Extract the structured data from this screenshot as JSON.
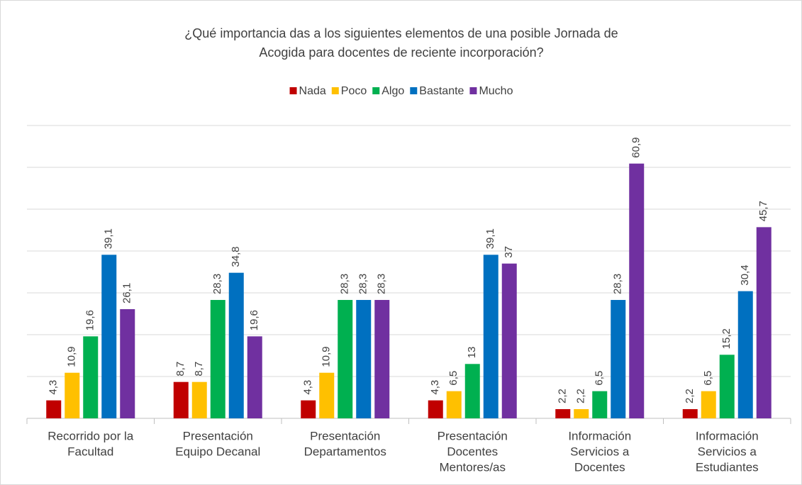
{
  "chart_data": {
    "type": "bar",
    "title": [
      "¿Qué importancia das a los siguientes elementos de una posible Jornada de",
      "Acogida para docentes de reciente incorporación?"
    ],
    "categories": [
      [
        "Recorrido por la",
        "Facultad"
      ],
      [
        "Presentación",
        "Equipo Decanal"
      ],
      [
        "Presentación",
        "Departamentos"
      ],
      [
        "Presentación",
        "Docentes",
        "Mentores/as"
      ],
      [
        "Información",
        "Servicios a",
        "Docentes"
      ],
      [
        "Información",
        "Servicios a",
        "Estudiantes"
      ]
    ],
    "series": [
      {
        "name": "Nada",
        "color": "#c00000",
        "values": [
          4.3,
          8.7,
          4.3,
          4.3,
          2.2,
          2.2
        ],
        "value_labels": [
          "4,3",
          "8,7",
          "4,3",
          "4,3",
          "2,2",
          "2,2"
        ]
      },
      {
        "name": "Poco",
        "color": "#ffc000",
        "values": [
          10.9,
          8.7,
          10.9,
          6.5,
          2.2,
          6.5
        ],
        "value_labels": [
          "10,9",
          "8,7",
          "10,9",
          "6,5",
          "2,2",
          "6,5"
        ]
      },
      {
        "name": "Algo",
        "color": "#00b050",
        "values": [
          19.6,
          28.3,
          28.3,
          13,
          6.5,
          15.2
        ],
        "value_labels": [
          "19,6",
          "28,3",
          "28,3",
          "13",
          "6,5",
          "15,2"
        ]
      },
      {
        "name": "Bastante",
        "color": "#0070c0",
        "values": [
          39.1,
          34.8,
          28.3,
          39.1,
          28.3,
          30.4
        ],
        "value_labels": [
          "39,1",
          "34,8",
          "28,3",
          "39,1",
          "28,3",
          "30,4"
        ]
      },
      {
        "name": "Mucho",
        "color": "#7030a0",
        "values": [
          26.1,
          19.6,
          28.3,
          37,
          60.9,
          45.7
        ],
        "value_labels": [
          "26,1",
          "19,6",
          "28,3",
          "37",
          "60,9",
          "45,7"
        ]
      }
    ],
    "ylim": [
      0,
      70
    ],
    "yticks": [
      0,
      10,
      20,
      30,
      40,
      50,
      60,
      70
    ],
    "grid": true,
    "legend": "top"
  }
}
